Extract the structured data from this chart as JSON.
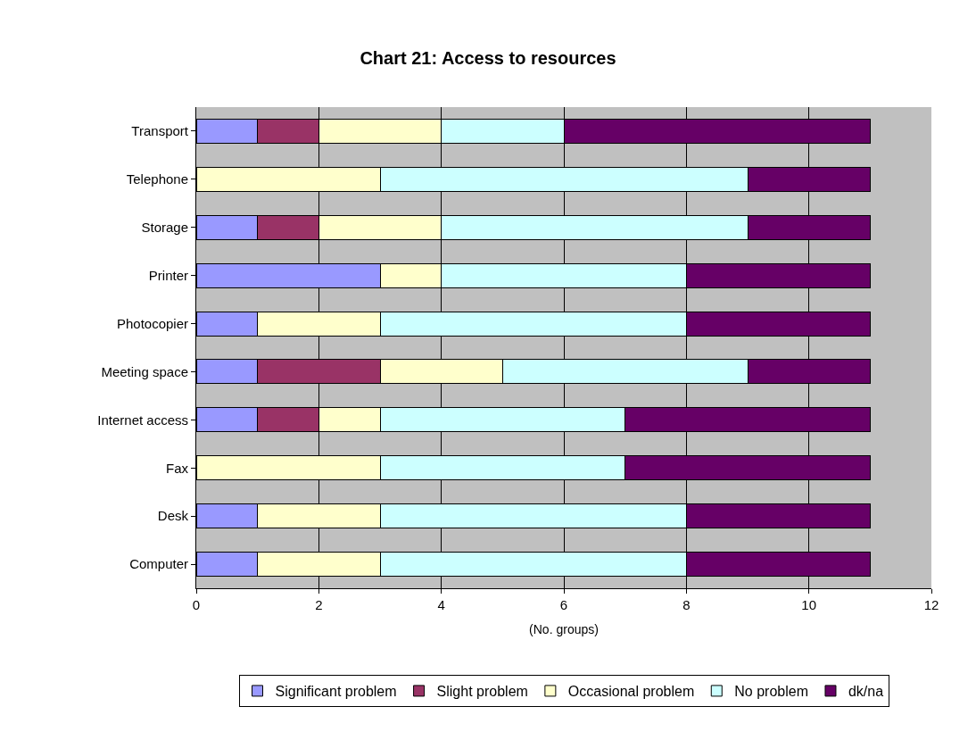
{
  "chart_data": {
    "type": "bar",
    "title": "Chart 21: Access to resources",
    "xlabel": "(No. groups)",
    "orientation": "horizontal",
    "stacked": true,
    "categories": [
      "Transport",
      "Telephone",
      "Storage",
      "Printer",
      "Photocopier",
      "Meeting space",
      "Internet access",
      "Fax",
      "Desk",
      "Computer"
    ],
    "series": [
      {
        "name": "Significant problem",
        "color": "#9999ff",
        "values": [
          1,
          0,
          1,
          3,
          1,
          1,
          1,
          0,
          1,
          1
        ]
      },
      {
        "name": "Slight problem",
        "color": "#993366",
        "values": [
          1,
          0,
          1,
          0,
          0,
          2,
          1,
          0,
          0,
          0
        ]
      },
      {
        "name": "Occasional problem",
        "color": "#ffffcc",
        "values": [
          2,
          3,
          2,
          1,
          2,
          2,
          1,
          3,
          2,
          2
        ]
      },
      {
        "name": "No problem",
        "color": "#ccffff",
        "values": [
          2,
          6,
          5,
          4,
          5,
          4,
          4,
          4,
          5,
          5
        ]
      },
      {
        "name": "dk/na",
        "color": "#660066",
        "values": [
          5,
          2,
          2,
          3,
          3,
          2,
          4,
          4,
          3,
          3
        ]
      }
    ],
    "xlim": [
      0,
      12
    ],
    "xticks": [
      0,
      2,
      4,
      6,
      8,
      10,
      12
    ],
    "grid": "x",
    "legend": "bottom"
  }
}
